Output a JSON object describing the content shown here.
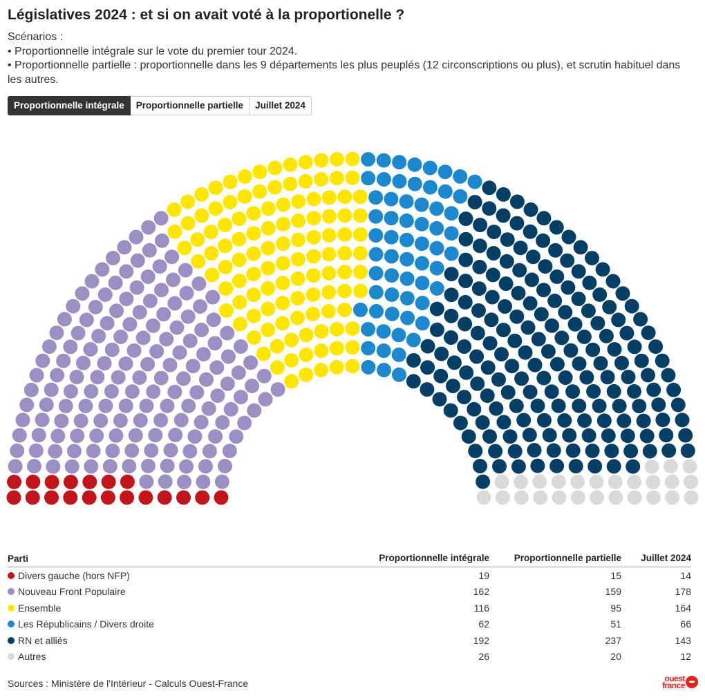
{
  "title": "Législatives 2024 : et si on avait voté à la proportionelle ?",
  "description": {
    "heading": "Scénarios :",
    "line1": "• Proportionnelle intégrale sur le vote du premier tour 2024.",
    "line2": "• Proportionnelle partielle : proportionnelle dans les 9 départements les plus peuplés (12 circonscriptions ou plus), et scrutin habituel dans les autres."
  },
  "tabs": [
    "Proportionnelle intégrale",
    "Proportionnelle partielle",
    "Juillet 2024"
  ],
  "active_tab": 0,
  "table": {
    "headers": [
      "Parti",
      "Proportionnelle intégrale",
      "Proportionnelle partielle",
      "Juillet 2024"
    ],
    "rows": [
      {
        "party": "Divers gauche (hors NFP)",
        "color": "#c0161b",
        "values": [
          "19",
          "15",
          "14"
        ]
      },
      {
        "party": "Nouveau Front Populaire",
        "color": "#9b8fc4",
        "values": [
          "162",
          "159",
          "178"
        ]
      },
      {
        "party": "Ensemble",
        "color": "#ffe600",
        "values": [
          "116",
          "95",
          "164"
        ]
      },
      {
        "party": "Les Républicains / Divers droite",
        "color": "#1e88cf",
        "values": [
          "62",
          "51",
          "66"
        ]
      },
      {
        "party": "RN et alliés",
        "color": "#063f66",
        "values": [
          "192",
          "237",
          "143"
        ]
      },
      {
        "party": "Autres",
        "color": "#dadada",
        "values": [
          "26",
          "20",
          "12"
        ]
      }
    ]
  },
  "source": "Sources : Ministère de l'Intérieur - Calculs Ouest-France",
  "logo": {
    "line1": "ouest",
    "line2": "france"
  },
  "chart_data": {
    "type": "parliament",
    "scenario": "Proportionnelle intégrale",
    "total_seats": 577,
    "series": [
      {
        "name": "Divers gauche (hors NFP)",
        "seats": 19,
        "color": "#c0161b"
      },
      {
        "name": "Nouveau Front Populaire",
        "seats": 162,
        "color": "#9b8fc4"
      },
      {
        "name": "Ensemble",
        "seats": 116,
        "color": "#ffe600"
      },
      {
        "name": "Les Républicains / Divers droite",
        "seats": 62,
        "color": "#1e88cf"
      },
      {
        "name": "RN et alliés",
        "seats": 192,
        "color": "#063f66"
      },
      {
        "name": "Autres",
        "seats": 26,
        "color": "#dadada"
      }
    ]
  }
}
